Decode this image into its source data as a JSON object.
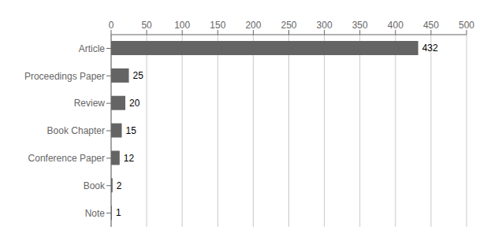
{
  "chart_data": {
    "type": "bar",
    "orientation": "horizontal",
    "categories": [
      "Note",
      "Book",
      "Conference Paper",
      "Book Chapter",
      "Review",
      "Proceedings Paper",
      "Article"
    ],
    "values": [
      1,
      2,
      12,
      15,
      20,
      25,
      432
    ],
    "color": "#646464",
    "xlim": [
      0,
      500
    ],
    "xticks": [
      0,
      50,
      100,
      150,
      200,
      250,
      300,
      350,
      400,
      450,
      500
    ],
    "grid": true,
    "data_labels": true
  }
}
